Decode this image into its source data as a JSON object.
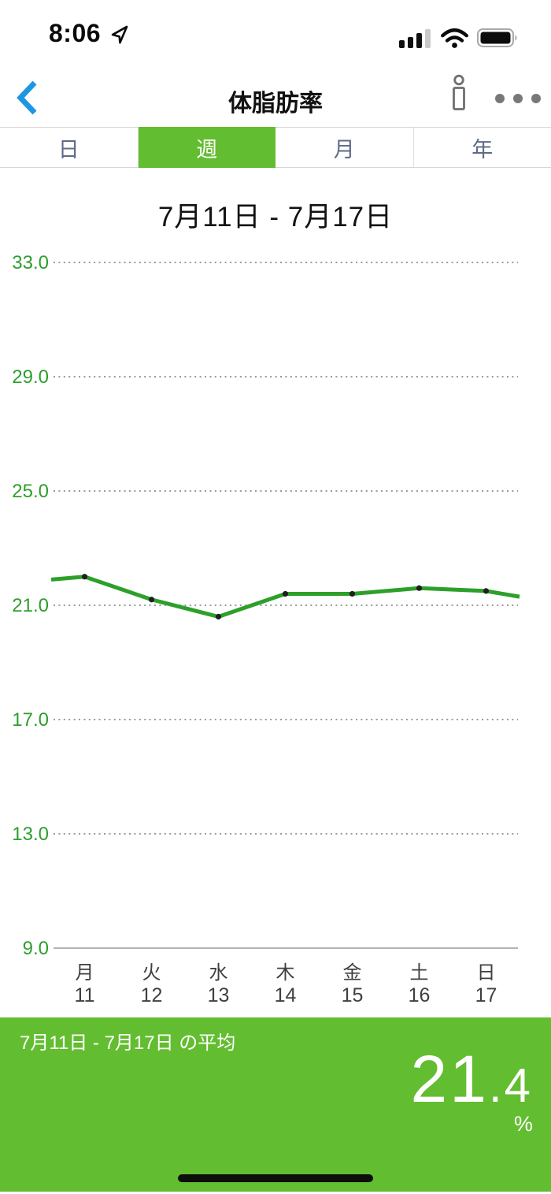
{
  "status_bar": {
    "time": "8:06",
    "icons": {
      "location_arrow": "location-arrow",
      "cellular": "cellular-signal-3-of-4-bars",
      "wifi": "wifi-full",
      "battery": "battery-full"
    }
  },
  "nav": {
    "title": "体脂肪率",
    "back_icon": "chevron-left",
    "info_icon": "scale-info-outline",
    "menu_icon": "ellipsis"
  },
  "tabs": {
    "items": [
      {
        "label": "日",
        "selected": false
      },
      {
        "label": "週",
        "selected": true
      },
      {
        "label": "月",
        "selected": false
      },
      {
        "label": "年",
        "selected": false
      }
    ]
  },
  "chart_data": {
    "type": "line",
    "title": "7月11日 - 7月17日",
    "x_weekdays": [
      "月",
      "火",
      "水",
      "木",
      "金",
      "土",
      "日"
    ],
    "x_days": [
      "11",
      "12",
      "13",
      "14",
      "15",
      "16",
      "17"
    ],
    "values": [
      22.0,
      21.2,
      20.6,
      21.4,
      21.4,
      21.6,
      21.5
    ],
    "unit": "%",
    "yticks": [
      "33.0",
      "29.0",
      "25.0",
      "21.0",
      "17.0",
      "13.0",
      "9.0"
    ],
    "ylim": [
      9.0,
      33.0
    ],
    "grid": "dotted horizontal lines, solid bottom axis",
    "legend": "none",
    "line_edge_values": {
      "left": 21.9,
      "right": 21.3
    }
  },
  "summary": {
    "label": "7月11日 - 7月17日 の平均",
    "value": "21.4",
    "unit": "%"
  },
  "colors": {
    "accent_green": "#63bd31",
    "line_green": "#2da02a",
    "axis_label_green": "#2e9e2e",
    "tab_text": "#5d6b87",
    "back_blue": "#1d96e3",
    "grid_gray": "#9a9a9a",
    "x_label_gray": "#3f3f3f",
    "marker_black": "#1f1f1f"
  }
}
